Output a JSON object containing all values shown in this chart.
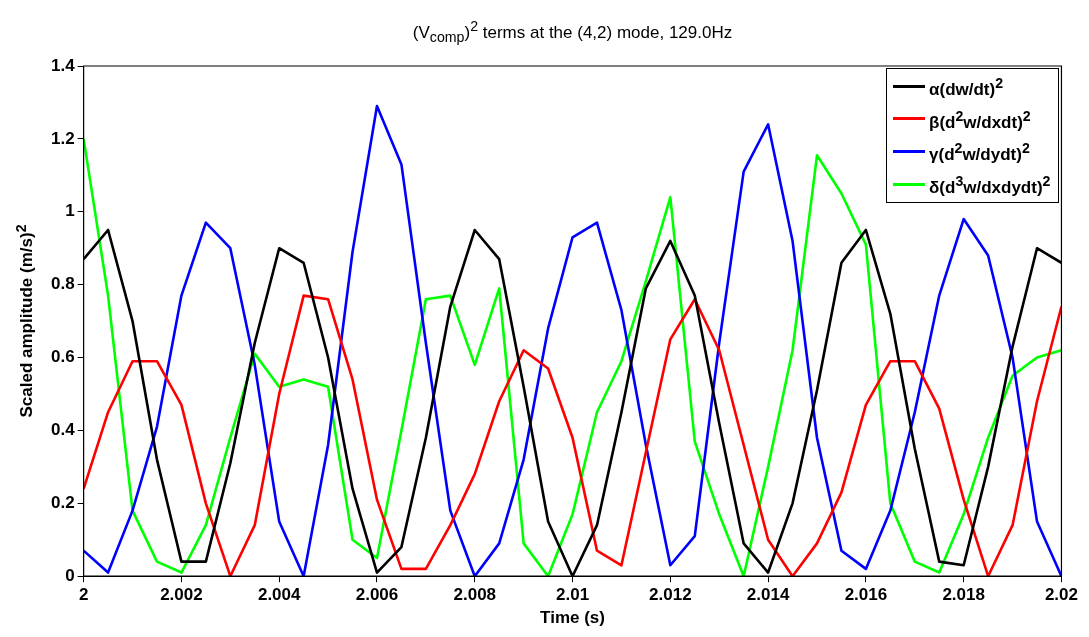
{
  "chart_data": {
    "type": "line",
    "title": "(V$_{comp}$)$^{2}$ terms at the (4,2) mode, 129.0Hz",
    "xlabel": "Time (s)",
    "ylabel": "Scaled amplitude (m/s)$^{2}$",
    "x": [
      2,
      2.0005,
      2.001,
      2.0015,
      2.002,
      2.0025,
      2.003,
      2.0035,
      2.004,
      2.0045,
      2.005,
      2.0055,
      2.006,
      2.0065,
      2.007,
      2.0075,
      2.008,
      2.0085,
      2.009,
      2.0095,
      2.01,
      2.0105,
      2.011,
      2.0115,
      2.012,
      2.0125,
      2.013,
      2.0135,
      2.014,
      2.0145,
      2.015,
      2.0155,
      2.016,
      2.0165,
      2.017,
      2.0175,
      2.018,
      2.0185,
      2.019,
      2.0195,
      2.02
    ],
    "series": [
      {
        "name": "α(dw/dt)$^{2}$",
        "color": "#000000",
        "values": [
          0.87,
          0.95,
          0.7,
          0.32,
          0.04,
          0.04,
          0.31,
          0.64,
          0.9,
          0.86,
          0.6,
          0.24,
          0.01,
          0.08,
          0.38,
          0.74,
          0.95,
          0.87,
          0.52,
          0.15,
          0,
          0.14,
          0.45,
          0.79,
          0.92,
          0.77,
          0.42,
          0.09,
          0.01,
          0.2,
          0.51,
          0.86,
          0.95,
          0.72,
          0.35,
          0.04,
          0.03,
          0.3,
          0.63,
          0.9,
          0.86
        ]
      },
      {
        "name": "β(d$^{2}$w/dxdt)$^{2}$",
        "color": "#ff0000",
        "values": [
          0.24,
          0.45,
          0.59,
          0.59,
          0.47,
          0.2,
          0,
          0.14,
          0.5,
          0.77,
          0.76,
          0.54,
          0.21,
          0.02,
          0.02,
          0.14,
          0.28,
          0.48,
          0.62,
          0.57,
          0.38,
          0.07,
          0.03,
          0.34,
          0.65,
          0.76,
          0.62,
          0.36,
          0.1,
          0,
          0.09,
          0.23,
          0.47,
          0.59,
          0.59,
          0.46,
          0.21,
          0,
          0.14,
          0.48,
          0.74
        ]
      },
      {
        "name": "γ(d$^{2}$w/dydt)$^{2}$",
        "color": "#0000ff",
        "values": [
          0.07,
          0.01,
          0.18,
          0.41,
          0.77,
          0.97,
          0.9,
          0.58,
          0.15,
          0,
          0.36,
          0.89,
          1.29,
          1.13,
          0.64,
          0.18,
          0,
          0.09,
          0.32,
          0.68,
          0.93,
          0.97,
          0.73,
          0.36,
          0.03,
          0.11,
          0.64,
          1.11,
          1.24,
          0.92,
          0.38,
          0.07,
          0.02,
          0.18,
          0.45,
          0.77,
          0.98,
          0.88,
          0.6,
          0.15,
          0
        ]
      },
      {
        "name": "δ(d$^{3}$w/dxdydt)$^{2}$",
        "color": "#00ff00",
        "values": [
          1.2,
          0.77,
          0.18,
          0.04,
          0.01,
          0.14,
          0.38,
          0.61,
          0.52,
          0.54,
          0.52,
          0.1,
          0.05,
          0.4,
          0.76,
          0.77,
          0.58,
          0.79,
          0.09,
          0,
          0.17,
          0.45,
          0.59,
          0.81,
          1.04,
          0.37,
          0.17,
          0,
          0.3,
          0.62,
          1.155,
          1.05,
          0.91,
          0.2,
          0.04,
          0.01,
          0.17,
          0.38,
          0.55,
          0.6,
          0.62
        ]
      }
    ],
    "xlim": [
      2,
      2.02
    ],
    "xticks": [
      2,
      2.002,
      2.004,
      2.006,
      2.008,
      2.01,
      2.012,
      2.014,
      2.016,
      2.018,
      2.02
    ],
    "ylim": [
      0,
      1.4
    ],
    "yticks": [
      0,
      0.2,
      0.4,
      0.6,
      0.8,
      1,
      1.2,
      1.4
    ],
    "legend": "top right",
    "marker": "none",
    "line_style": "solid"
  }
}
